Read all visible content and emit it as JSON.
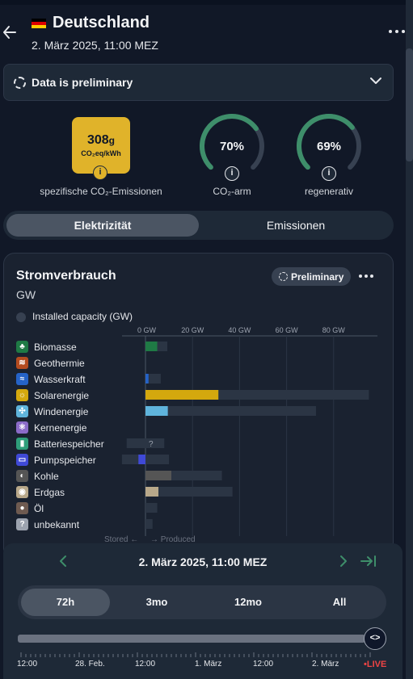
{
  "header": {
    "country": "Deutschland",
    "datetime": "2. März 2025, 11:00 MEZ",
    "flag_colors": [
      "#000000",
      "#dd0000",
      "#ffce00"
    ]
  },
  "banner": {
    "text": "Data is preliminary"
  },
  "metrics": {
    "co2_value": "308",
    "co2_value_unit": "g",
    "co2_unit": "CO₂eq/kWh",
    "co2_label": "spezifische CO₂-Emissionen",
    "co2_color": "#e0b32a",
    "low_carbon": {
      "value": "70%",
      "percent": 70,
      "label": "CO₂-arm"
    },
    "renewable": {
      "value": "69%",
      "percent": 69,
      "label": "regenerativ"
    },
    "gauge_color": "#3e8e6a"
  },
  "tabs": {
    "active": "Elektrizität",
    "inactive": "Emissionen"
  },
  "card": {
    "title": "Stromverbrauch",
    "unit": "GW",
    "pill": "Preliminary",
    "installed_capacity_label": "Installed capacity (GW)",
    "stored_label": "Stored ←",
    "produced_label": "→ Produced"
  },
  "chart_data": {
    "type": "bar",
    "title": "Stromverbrauch",
    "ylabel": "GW",
    "xlim": [
      -10,
      95
    ],
    "ticks": [
      "0 GW",
      "20 GW",
      "40 GW",
      "60 GW",
      "80 GW"
    ],
    "tick_values": [
      0,
      20,
      40,
      60,
      80
    ],
    "categories": [
      "Biomasse",
      "Geothermie",
      "Wasserkraft",
      "Solarenergie",
      "Windenergie",
      "Kernenergie",
      "Batteriespeicher",
      "Pumpspeicher",
      "Kohle",
      "Erdgas",
      "Öl",
      "unbekannt"
    ],
    "series": [
      {
        "name": "Installed capacity (GW)",
        "values": [
          9.3,
          0,
          6.5,
          95,
          72.5,
          0,
          8,
          10,
          32.5,
          37,
          5,
          3
        ]
      },
      {
        "name": "Produced",
        "values": [
          5,
          0,
          1.3,
          31,
          9.5,
          0,
          0,
          -3,
          11,
          5.5,
          0,
          0
        ]
      }
    ],
    "storage_min": [
      0,
      0,
      0,
      0,
      0,
      0,
      -8,
      -10,
      0,
      0,
      0,
      0
    ],
    "colors": [
      "#1f7a45",
      "#b44b1f",
      "#2563c7",
      "#d4a80e",
      "#5fb4dc",
      "#8b6bc8",
      "#2f9e7a",
      "#3f49d6",
      "#555555",
      "#b8a88a",
      "#6e5a50",
      "#9ca3af"
    ],
    "icons": [
      "leaf-icon",
      "heat-icon",
      "waves-icon",
      "sun-icon",
      "wind-icon",
      "atom-icon",
      "battery-icon",
      "pump-icon",
      "coal-icon",
      "gas-flame-icon",
      "oil-drop-icon",
      "question-icon"
    ],
    "icon_glyphs": [
      "♣",
      "≋",
      "≈",
      "☼",
      "✣",
      "⚛",
      "▮",
      "▭",
      "◐",
      "◉",
      "●",
      "?"
    ],
    "unknown_marker": "?"
  },
  "bottom": {
    "date": "2. März 2025, 11:00 MEZ",
    "ranges": [
      "72h",
      "3mo",
      "12mo",
      "All"
    ],
    "active_range": "72h",
    "timeline_labels": [
      "12:00",
      "28. Feb.",
      "12:00",
      "1. März",
      "12:00",
      "2. März"
    ],
    "live": "•LIVE",
    "accent": "#3e8e6a"
  }
}
